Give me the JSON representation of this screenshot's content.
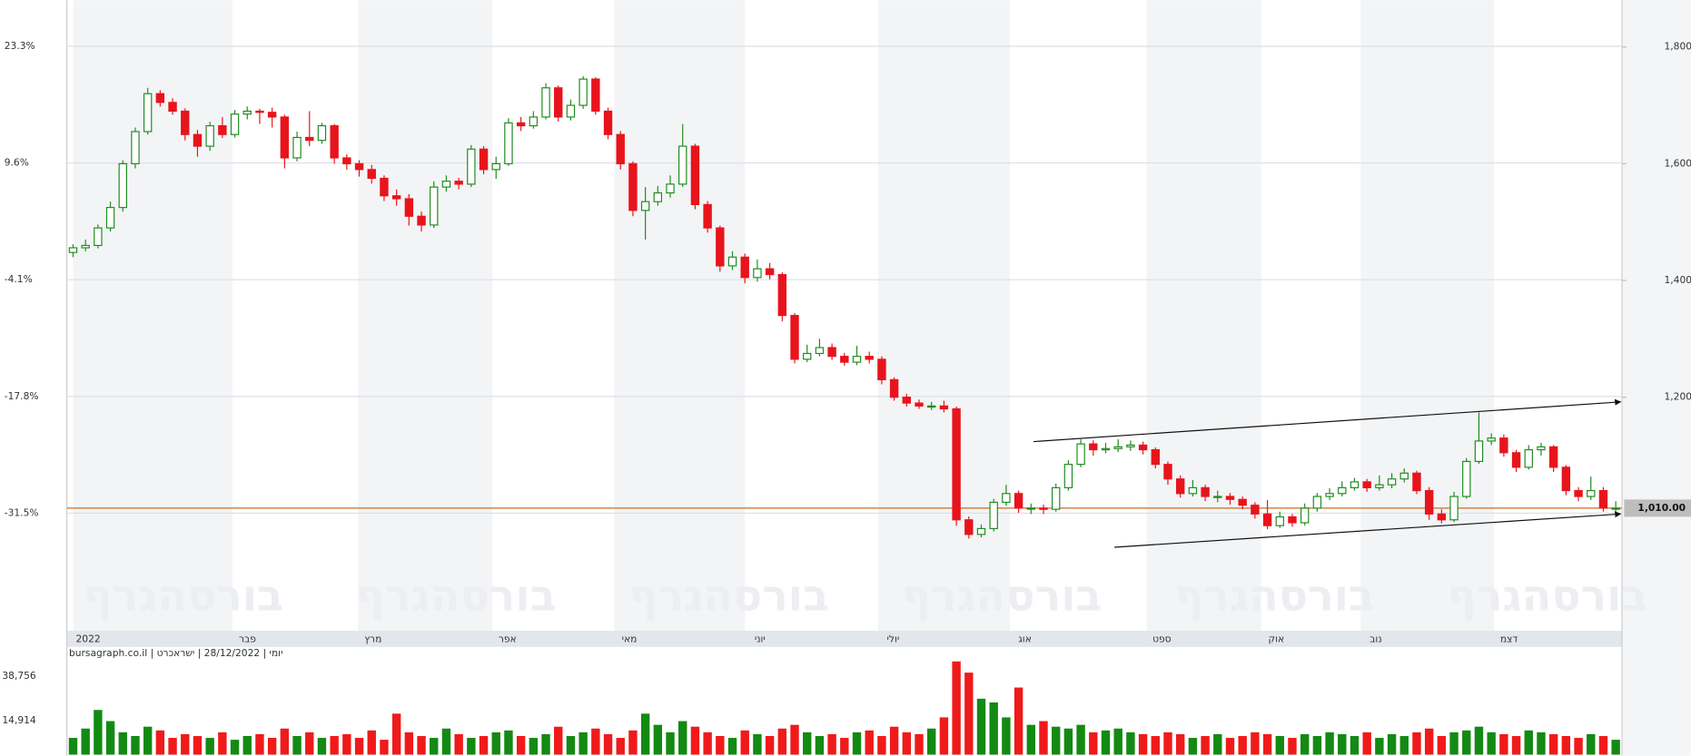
{
  "chart_data": {
    "type": "candlestick",
    "caption": "יומי | 28/12/2022 | ישראכרט | bursagraph.co.il",
    "watermark": "בורסהגרף",
    "xlim": [
      -0.5,
      124.5
    ],
    "xticks": [
      {
        "value": 0,
        "label": "2022"
      },
      {
        "value": 12.8,
        "label": "פבר"
      },
      {
        "value": 22.9,
        "label": "מרץ"
      },
      {
        "value": 33.7,
        "label": "אפר"
      },
      {
        "value": 43.5,
        "label": "מאי"
      },
      {
        "value": 54,
        "label": "יוני"
      },
      {
        "value": 64.7,
        "label": "יולי"
      },
      {
        "value": 75.3,
        "label": "אוג"
      },
      {
        "value": 86.3,
        "label": "ספט"
      },
      {
        "value": 95.5,
        "label": "אוק"
      },
      {
        "value": 103.5,
        "label": "נוב"
      },
      {
        "value": 114.2,
        "label": "דצמ"
      }
    ],
    "ylim": [
      800,
      1880
    ],
    "yticks": [
      {
        "value": 1200,
        "label": "1,200"
      },
      {
        "value": 1400,
        "label": "1,400"
      },
      {
        "value": 1600,
        "label": "1,600"
      },
      {
        "value": 1800,
        "label": "1,800"
      }
    ],
    "y2lim": [
      -45.3,
      28.7
    ],
    "y2ticks": [
      {
        "value": 23.3,
        "label": "23.3%"
      },
      {
        "value": 9.6,
        "label": "9.6%"
      },
      {
        "value": -4.1,
        "label": "-4.1%"
      },
      {
        "value": -17.8,
        "label": "-17.8%"
      },
      {
        "value": -31.5,
        "label": "-31.5%"
      }
    ],
    "grid": true,
    "up_color": "#1f8c1f",
    "down_color": "#e8141c",
    "open": [
      1448,
      1456,
      1460,
      1490,
      1525,
      1600,
      1655,
      1720,
      1705,
      1690,
      1650,
      1630,
      1665,
      1650,
      1685,
      1690,
      1688,
      1680,
      1610,
      1645,
      1640,
      1665,
      1610,
      1600,
      1590,
      1575,
      1545,
      1540,
      1510,
      1495,
      1560,
      1570,
      1565,
      1625,
      1590,
      1600,
      1670,
      1665,
      1680,
      1730,
      1680,
      1700,
      1745,
      1690,
      1650,
      1600,
      1520,
      1535,
      1550,
      1565,
      1630,
      1530,
      1490,
      1425,
      1440,
      1405,
      1420,
      1410,
      1340,
      1265,
      1275,
      1285,
      1270,
      1260,
      1270,
      1265,
      1230,
      1200,
      1190,
      1185,
      1185,
      1180,
      990,
      965,
      975,
      1020,
      1035,
      1010,
      1010,
      1008,
      1045,
      1085,
      1120,
      1110,
      1112,
      1115,
      1118,
      1110,
      1085,
      1060,
      1035,
      1045,
      1030,
      1030,
      1025,
      1015,
      1000,
      980,
      995,
      985,
      1010,
      1030,
      1035,
      1045,
      1055,
      1045,
      1050,
      1060,
      1070,
      1040,
      1000,
      990,
      1030,
      1090,
      1125,
      1130,
      1105,
      1080,
      1110,
      1115,
      1080,
      1040,
      1030,
      1040,
      1010
    ],
    "high": [
      1462,
      1470,
      1496,
      1535,
      1606,
      1662,
      1730,
      1726,
      1712,
      1695,
      1658,
      1672,
      1680,
      1692,
      1698,
      1694,
      1696,
      1684,
      1655,
      1690,
      1670,
      1668,
      1616,
      1606,
      1598,
      1580,
      1556,
      1548,
      1518,
      1570,
      1580,
      1576,
      1632,
      1630,
      1612,
      1678,
      1680,
      1690,
      1738,
      1734,
      1710,
      1750,
      1748,
      1696,
      1656,
      1604,
      1560,
      1562,
      1580,
      1668,
      1634,
      1536,
      1494,
      1450,
      1446,
      1436,
      1430,
      1414,
      1344,
      1290,
      1300,
      1292,
      1276,
      1288,
      1278,
      1270,
      1234,
      1206,
      1196,
      1192,
      1194,
      1184,
      996,
      982,
      1026,
      1050,
      1040,
      1018,
      1016,
      1052,
      1092,
      1128,
      1126,
      1122,
      1128,
      1126,
      1124,
      1114,
      1090,
      1066,
      1058,
      1050,
      1040,
      1036,
      1030,
      1020,
      1024,
      1004,
      1000,
      1018,
      1036,
      1044,
      1056,
      1062,
      1060,
      1066,
      1070,
      1078,
      1074,
      1046,
      1008,
      1038,
      1096,
      1174,
      1138,
      1136,
      1110,
      1118,
      1122,
      1118,
      1084,
      1046,
      1064,
      1046,
      1022
    ],
    "low": [
      1440,
      1450,
      1455,
      1484,
      1518,
      1592,
      1650,
      1698,
      1684,
      1640,
      1612,
      1622,
      1644,
      1645,
      1676,
      1668,
      1662,
      1592,
      1604,
      1630,
      1634,
      1600,
      1590,
      1578,
      1566,
      1536,
      1528,
      1494,
      1484,
      1490,
      1552,
      1556,
      1560,
      1582,
      1574,
      1596,
      1656,
      1660,
      1676,
      1672,
      1674,
      1694,
      1684,
      1642,
      1590,
      1510,
      1470,
      1528,
      1542,
      1560,
      1522,
      1482,
      1415,
      1418,
      1395,
      1398,
      1402,
      1330,
      1258,
      1260,
      1270,
      1264,
      1254,
      1255,
      1258,
      1222,
      1194,
      1184,
      1180,
      1178,
      1174,
      980,
      958,
      960,
      970,
      1014,
      1002,
      1000,
      1000,
      1004,
      1040,
      1080,
      1100,
      1104,
      1106,
      1108,
      1102,
      1078,
      1050,
      1028,
      1030,
      1022,
      1020,
      1016,
      1008,
      992,
      974,
      976,
      978,
      980,
      1004,
      1024,
      1030,
      1040,
      1038,
      1040,
      1044,
      1054,
      1034,
      990,
      984,
      986,
      1026,
      1086,
      1118,
      1098,
      1072,
      1076,
      1100,
      1072,
      1032,
      1022,
      1024,
      1004,
      1004
    ],
    "close": [
      1456,
      1460,
      1490,
      1525,
      1600,
      1655,
      1720,
      1705,
      1690,
      1650,
      1630,
      1665,
      1650,
      1685,
      1690,
      1688,
      1680,
      1610,
      1645,
      1640,
      1665,
      1610,
      1600,
      1590,
      1575,
      1545,
      1540,
      1510,
      1495,
      1560,
      1570,
      1565,
      1625,
      1590,
      1600,
      1670,
      1665,
      1680,
      1730,
      1680,
      1700,
      1745,
      1690,
      1650,
      1600,
      1520,
      1535,
      1550,
      1565,
      1630,
      1530,
      1490,
      1425,
      1440,
      1405,
      1420,
      1410,
      1340,
      1265,
      1275,
      1285,
      1270,
      1260,
      1270,
      1265,
      1230,
      1200,
      1190,
      1185,
      1185,
      1180,
      990,
      965,
      975,
      1020,
      1035,
      1010,
      1010,
      1008,
      1045,
      1085,
      1120,
      1110,
      1112,
      1115,
      1118,
      1110,
      1085,
      1060,
      1035,
      1045,
      1030,
      1030,
      1025,
      1015,
      1000,
      980,
      995,
      985,
      1010,
      1030,
      1035,
      1045,
      1055,
      1045,
      1050,
      1060,
      1070,
      1040,
      1000,
      990,
      1030,
      1090,
      1125,
      1130,
      1105,
      1080,
      1110,
      1115,
      1080,
      1040,
      1030,
      1040,
      1010,
      1010
    ],
    "last_price": {
      "value": 1010,
      "label": "1,010.00"
    },
    "last_price_color": "#d2691e",
    "trendlines": [
      {
        "x": [
          77.2,
          124.4
        ],
        "y": [
          1124,
          1192
        ]
      },
      {
        "x": [
          83.7,
          124.4
        ],
        "y": [
          943,
          1000
        ]
      }
    ],
    "trendline_color": "#111111",
    "volume": {
      "values": [
        9000,
        14000,
        24000,
        18000,
        12000,
        10000,
        15000,
        13000,
        9000,
        11000,
        10000,
        9000,
        12000,
        8000,
        10000,
        11000,
        9000,
        14000,
        10000,
        12000,
        9000,
        10000,
        11000,
        9000,
        13000,
        8000,
        22000,
        12000,
        10000,
        9000,
        14000,
        11000,
        9000,
        10000,
        12000,
        13000,
        10000,
        9000,
        11000,
        15000,
        10000,
        12000,
        14000,
        11000,
        9000,
        13000,
        22000,
        16000,
        12000,
        18000,
        15000,
        12000,
        10000,
        9000,
        13000,
        11000,
        10000,
        14000,
        16000,
        12000,
        10000,
        11000,
        9000,
        12000,
        13000,
        10000,
        15000,
        12000,
        11000,
        14000,
        20000,
        50000,
        44000,
        30000,
        28000,
        20000,
        36000,
        16000,
        18000,
        15000,
        14000,
        16000,
        12000,
        13000,
        14000,
        12000,
        11000,
        10000,
        12000,
        11000,
        9000,
        10000,
        11000,
        9000,
        10000,
        12000,
        11000,
        10000,
        9000,
        11000,
        10000,
        12000,
        11000,
        10000,
        12000,
        9000,
        11000,
        10000,
        12000,
        14000,
        10000,
        12000,
        13000,
        15000,
        12000,
        11000,
        10000,
        13000,
        12000,
        11000,
        10000,
        9000,
        11000,
        10000,
        8000
      ],
      "ylim": [
        0,
        57800
      ],
      "yticks": [
        {
          "value": 14914,
          "label": "14,914"
        },
        {
          "value": 38756,
          "label": "38,756"
        }
      ]
    }
  }
}
